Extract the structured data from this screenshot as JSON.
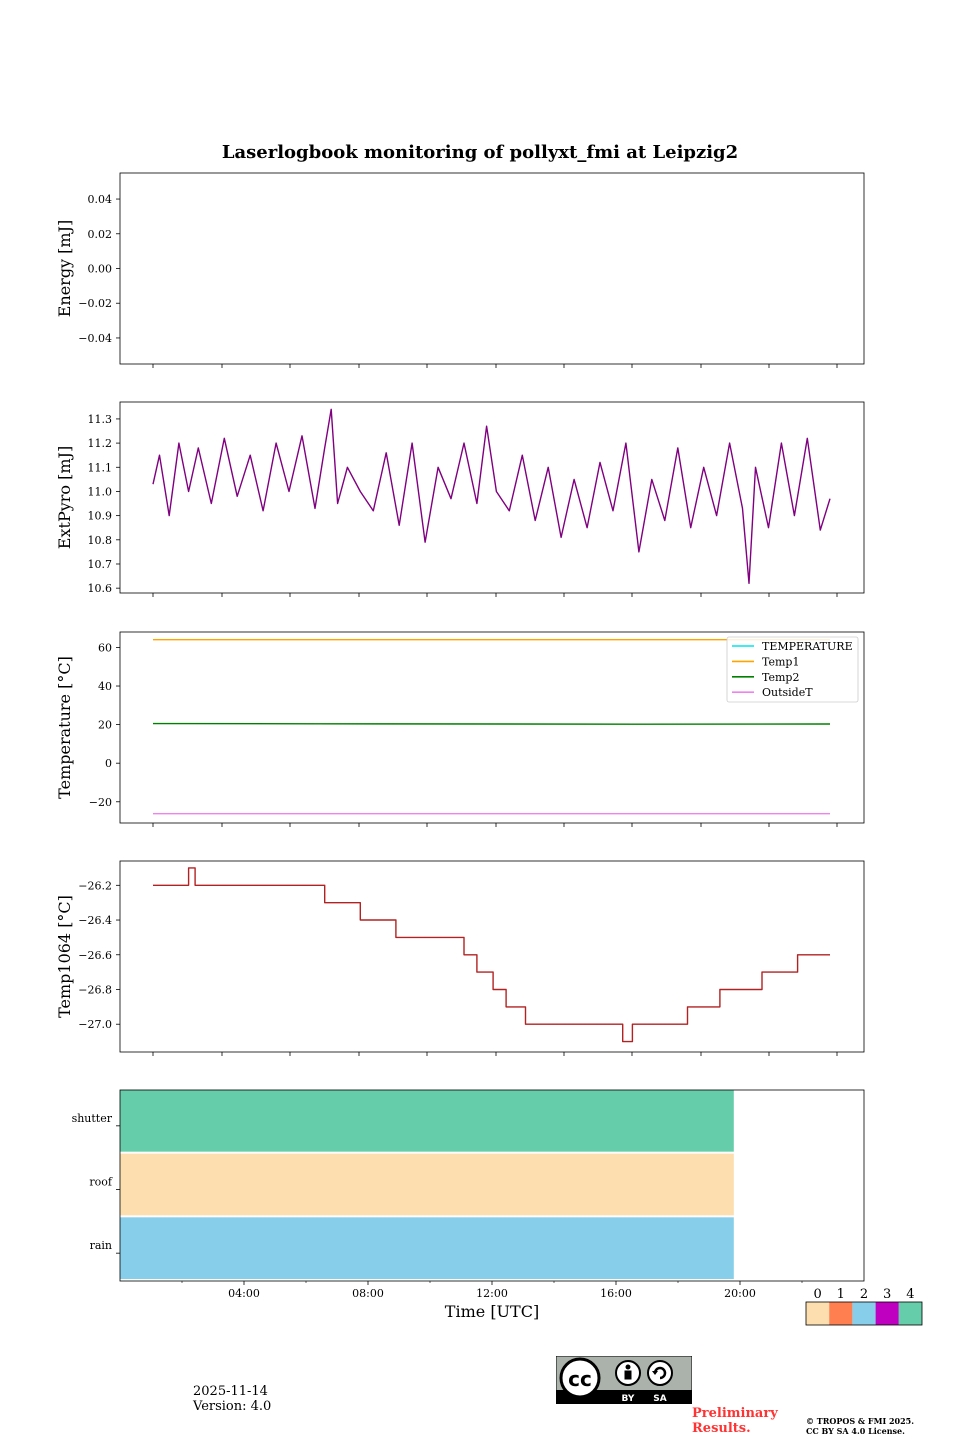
{
  "title": "Laserlogbook monitoring of pollyxt_fmi at Leipzig2",
  "footer": {
    "date": "2025-11-14",
    "version": "Version: 4.0",
    "preliminary": [
      "Preliminary",
      "Results."
    ],
    "copyright": [
      "© TROPOS & FMI 2025.",
      "CC BY SA 4.0 License."
    ],
    "license_badge": {
      "label": "cc",
      "by": "BY",
      "sa": "SA"
    }
  },
  "chart_data": [
    {
      "type": "line",
      "ylabel": "Energy [mJ]",
      "ylim": [
        -0.055,
        0.055
      ],
      "yticks": [
        0.04,
        0.02,
        0.0,
        -0.02,
        -0.04
      ],
      "ytick_labels": [
        "0.04",
        "0.02",
        "0.00",
        "−0.02",
        "−0.04"
      ],
      "series": []
    },
    {
      "type": "line",
      "ylabel": "ExtPyro [mJ]",
      "ylim": [
        10.58,
        11.37
      ],
      "yticks": [
        11.3,
        11.2,
        11.1,
        11.0,
        10.9,
        10.8,
        10.7,
        10.6
      ],
      "ytick_labels": [
        "11.3",
        "11.2",
        "11.1",
        "11.0",
        "10.9",
        "10.8",
        "10.7",
        "10.6"
      ],
      "series": [
        {
          "name": "ExtPyro",
          "color": "#800080",
          "x": [
            1.0,
            1.2,
            1.5,
            1.8,
            2.1,
            2.4,
            2.8,
            3.2,
            3.6,
            4.0,
            4.4,
            4.8,
            5.2,
            5.6,
            6.0,
            6.3,
            6.5,
            6.7,
            7.0,
            7.4,
            7.8,
            8.2,
            8.6,
            9.0,
            9.4,
            9.8,
            10.2,
            10.6,
            11.0,
            11.3,
            11.6,
            12.0,
            12.4,
            12.8,
            13.2,
            13.6,
            14.0,
            14.4,
            14.8,
            15.2,
            15.6,
            16.0,
            16.4,
            16.8,
            17.2,
            17.6,
            18.0,
            18.4,
            18.8,
            19.2,
            19.4,
            19.6,
            20.0,
            20.4,
            20.8,
            21.2,
            21.6,
            21.9
          ],
          "y": [
            11.03,
            11.15,
            10.9,
            11.2,
            11.0,
            11.18,
            10.95,
            11.22,
            10.98,
            11.15,
            10.92,
            11.2,
            11.0,
            11.23,
            10.93,
            11.18,
            11.34,
            10.95,
            11.1,
            11.0,
            10.92,
            11.16,
            10.86,
            11.2,
            10.79,
            11.1,
            10.97,
            11.2,
            10.95,
            11.27,
            11.0,
            10.92,
            11.15,
            10.88,
            11.1,
            10.81,
            11.05,
            10.85,
            11.12,
            10.92,
            11.2,
            10.75,
            11.05,
            10.88,
            11.18,
            10.85,
            11.1,
            10.9,
            11.2,
            10.93,
            10.62,
            11.1,
            10.85,
            11.2,
            10.9,
            11.22,
            10.84,
            10.97
          ]
        }
      ]
    },
    {
      "type": "line",
      "ylabel": "Temperature [°C]",
      "ylim": [
        -31,
        68
      ],
      "yticks": [
        60,
        40,
        20,
        0,
        -20
      ],
      "ytick_labels": [
        "60",
        "40",
        "20",
        "0",
        "−20"
      ],
      "legend": {
        "position": "top-right"
      },
      "series": [
        {
          "name": "TEMPERATURE",
          "color": "#00e5ee",
          "x": [],
          "y": []
        },
        {
          "name": "Temp1",
          "color": "#ffa500",
          "x": [
            1.0,
            21.9
          ],
          "y": [
            64,
            64
          ]
        },
        {
          "name": "Temp2",
          "color": "#008000",
          "x": [
            1.0,
            6.0,
            12.0,
            16.0,
            21.9
          ],
          "y": [
            20.5,
            20.4,
            20.3,
            20.2,
            20.3
          ]
        },
        {
          "name": "OutsideT",
          "color": "#ee82ee",
          "x": [
            1.0,
            21.9
          ],
          "y": [
            -26.2,
            -26.2
          ]
        }
      ]
    },
    {
      "type": "line",
      "ylabel": "Temp1064 [°C]",
      "ylim": [
        -27.16,
        -26.06
      ],
      "yticks": [
        -26.2,
        -26.4,
        -26.6,
        -26.8,
        -27.0
      ],
      "ytick_labels": [
        "−26.2",
        "−26.4",
        "−26.6",
        "−26.8",
        "−27.0"
      ],
      "series": [
        {
          "name": "Temp1064",
          "color": "#b22222",
          "x": [
            1.0,
            2.1,
            2.1,
            2.3,
            2.3,
            6.3,
            6.3,
            7.4,
            7.4,
            8.5,
            8.5,
            9.6,
            9.6,
            10.6,
            10.6,
            11.0,
            11.0,
            11.5,
            11.5,
            11.9,
            11.9,
            12.5,
            12.5,
            15.5,
            15.5,
            15.8,
            15.8,
            17.5,
            17.5,
            18.5,
            18.5,
            19.8,
            19.8,
            20.9,
            20.9,
            21.9
          ],
          "y": [
            -26.2,
            -26.2,
            -26.1,
            -26.1,
            -26.2,
            -26.2,
            -26.3,
            -26.3,
            -26.4,
            -26.4,
            -26.5,
            -26.5,
            -26.5,
            -26.5,
            -26.6,
            -26.6,
            -26.7,
            -26.7,
            -26.8,
            -26.8,
            -26.9,
            -26.9,
            -27.0,
            -27.0,
            -27.1,
            -27.1,
            -27.0,
            -27.0,
            -26.9,
            -26.9,
            -26.8,
            -26.8,
            -26.7,
            -26.7,
            -26.6,
            -26.6
          ]
        }
      ]
    },
    {
      "type": "heatmap",
      "xlabel": "Time [UTC]",
      "xlim": [
        0,
        24
      ],
      "xticks": [
        4,
        8,
        12,
        16,
        20
      ],
      "xtick_labels": [
        "04:00",
        "08:00",
        "12:00",
        "16:00",
        "20:00"
      ],
      "rows": [
        "shutter",
        "roof",
        "rain"
      ],
      "blocks": [
        {
          "row": "shutter",
          "x0": 0,
          "x1": 19.8,
          "status": 4
        },
        {
          "row": "roof",
          "x0": 0,
          "x1": 19.8,
          "status": 0
        },
        {
          "row": "rain",
          "x0": 0,
          "x1": 19.8,
          "status": 2
        }
      ],
      "colorbar": {
        "labels": [
          "0",
          "1",
          "2",
          "3",
          "4"
        ],
        "colors": [
          "#fddeae",
          "#ff7f50",
          "#87ceeb",
          "#c000c0",
          "#66cdaa"
        ]
      }
    }
  ]
}
